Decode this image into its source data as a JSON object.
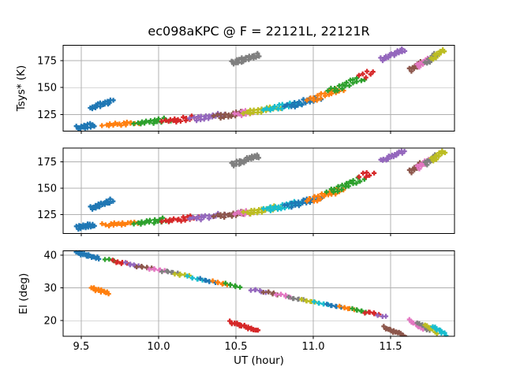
{
  "chart_data": {
    "type": "scatter",
    "title": "ec098aKPC @ F = 22121L, 22121R",
    "xlabel": "UT (hour)",
    "marker": "plus",
    "xlim": [
      9.383,
      11.913
    ],
    "xticks": [
      9.5,
      10.0,
      10.5,
      11.0,
      11.5
    ],
    "xticklabels": [
      "9.5",
      "10.0",
      "10.5",
      "11.0",
      "11.5"
    ],
    "grid": true,
    "grid_color": "#b0b0b0",
    "spine_color": "#000000",
    "background": "#ffffff",
    "palette": {
      "blue": "#1f77b4",
      "orange": "#ff7f0e",
      "green": "#2ca02c",
      "red": "#d62728",
      "purple": "#9467bd",
      "brown": "#8c564b",
      "pink": "#e377c2",
      "gray": "#7f7f7f",
      "olive": "#bcbd22",
      "cyan": "#17becf"
    },
    "panels": [
      {
        "id": "tsys-22121L",
        "ylabel": "Tsys* (K)",
        "ylim": [
          110,
          189
        ],
        "yticks": [
          125,
          150,
          175
        ],
        "yticklabels": [
          "125",
          "150",
          "175"
        ],
        "clusters_ref": "tsys_clusters"
      },
      {
        "id": "tsys-22121R",
        "ylabel": "",
        "ylim": [
          107,
          188
        ],
        "yticks": [
          125,
          150,
          175
        ],
        "yticklabels": [
          "125",
          "150",
          "175"
        ],
        "clusters_ref": "tsys_clusters"
      },
      {
        "id": "elevation",
        "ylabel": "El (deg)",
        "ylim": [
          15.2,
          41.4
        ],
        "yticks": [
          20,
          30,
          40
        ],
        "yticklabels": [
          "20",
          "30",
          "40"
        ],
        "clusters_ref": "el_clusters"
      }
    ],
    "tsys_clusters": [
      {
        "c": "blue",
        "x0": 9.47,
        "x1": 9.575,
        "y0": 113.5,
        "y1": 116.5,
        "s": "blob"
      },
      {
        "c": "blue",
        "x0": 9.56,
        "x1": 9.69,
        "y0": 132.0,
        "y1": 139.0,
        "s": "blob"
      },
      {
        "c": "orange",
        "x0": 9.635,
        "x1": 9.825,
        "y0": 115.5,
        "y1": 118.5,
        "s": "band"
      },
      {
        "c": "green",
        "x0": 9.84,
        "x1": 10.03,
        "y0": 117.0,
        "y1": 121.0,
        "s": "band"
      },
      {
        "c": "red",
        "x0": 10.02,
        "x1": 10.21,
        "y0": 119.0,
        "y1": 123.0,
        "s": "band"
      },
      {
        "c": "purple",
        "x0": 10.2,
        "x1": 10.38,
        "y0": 121.5,
        "y1": 125.5,
        "s": "band"
      },
      {
        "c": "brown",
        "x0": 10.355,
        "x1": 10.53,
        "y0": 123.5,
        "y1": 127.5,
        "s": "band"
      },
      {
        "c": "pink",
        "x0": 10.49,
        "x1": 10.565,
        "y0": 125.5,
        "y1": 128.5,
        "s": "band"
      },
      {
        "c": "gray",
        "x0": 10.47,
        "x1": 10.635,
        "y0": 173.5,
        "y1": 181.0,
        "s": "blob"
      },
      {
        "c": "olive",
        "x0": 10.545,
        "x1": 10.745,
        "y0": 127.0,
        "y1": 132.5,
        "s": "band"
      },
      {
        "c": "cyan",
        "x0": 10.675,
        "x1": 10.875,
        "y0": 130.0,
        "y1": 136.5,
        "s": "band"
      },
      {
        "c": "blue",
        "x0": 10.81,
        "x1": 11.005,
        "y0": 133.0,
        "y1": 141.0,
        "s": "band"
      },
      {
        "c": "orange",
        "x0": 10.955,
        "x1": 11.15,
        "y0": 138.5,
        "y1": 149.0,
        "s": "band"
      },
      {
        "c": "green",
        "x0": 11.09,
        "x1": 11.285,
        "y0": 147.0,
        "y1": 159.0,
        "s": "band"
      },
      {
        "c": "red",
        "x0": 11.3,
        "x1": 11.345,
        "y0": 161.0,
        "y1": 165.5,
        "s": "band"
      },
      {
        "c": "purple",
        "x0": 11.44,
        "x1": 11.575,
        "y0": 177.0,
        "y1": 186.0,
        "s": "blob"
      },
      {
        "c": "brown",
        "x0": 11.625,
        "x1": 11.69,
        "y0": 167.0,
        "y1": 173.5,
        "s": "blob"
      },
      {
        "c": "pink",
        "x0": 11.675,
        "x1": 11.74,
        "y0": 170.5,
        "y1": 177.5,
        "s": "blob"
      },
      {
        "c": "gray",
        "x0": 11.725,
        "x1": 11.785,
        "y0": 174.0,
        "y1": 181.0,
        "s": "blob"
      },
      {
        "c": "olive",
        "x0": 11.765,
        "x1": 11.835,
        "y0": 177.5,
        "y1": 185.5,
        "s": "blob"
      }
    ],
    "el_clusters": [
      {
        "c": "blue",
        "x0": 9.468,
        "x1": 9.6,
        "y0": 41.0,
        "y1": 39.5,
        "s": "blob"
      },
      {
        "c": "orange",
        "x0": 9.565,
        "x1": 9.665,
        "y0": 30.0,
        "y1": 28.9,
        "s": "blob"
      },
      {
        "c": "red",
        "x0": 10.46,
        "x1": 10.63,
        "y0": 19.8,
        "y1": 17.4,
        "s": "blob"
      },
      {
        "c": "brown",
        "x0": 11.455,
        "x1": 11.585,
        "y0": 18.1,
        "y1": 15.5,
        "s": "blob"
      },
      {
        "c": "pink",
        "x0": 11.62,
        "x1": 11.695,
        "y0": 20.1,
        "y1": 18.0,
        "s": "blob"
      },
      {
        "c": "gray",
        "x0": 11.67,
        "x1": 11.74,
        "y0": 19.6,
        "y1": 17.4,
        "s": "blob"
      },
      {
        "c": "olive",
        "x0": 11.72,
        "x1": 11.79,
        "y0": 18.9,
        "y1": 16.7,
        "s": "blob"
      },
      {
        "c": "cyan",
        "x0": 11.77,
        "x1": 11.85,
        "y0": 18.3,
        "y1": 16.1,
        "s": "blob"
      },
      {
        "c": "green",
        "x0": 9.65,
        "x1": 9.712,
        "y0": 38.8,
        "y1": 38.2,
        "s": "line"
      },
      {
        "c": "red",
        "x0": 9.732,
        "x1": 9.794,
        "y0": 38.0,
        "y1": 37.4,
        "s": "line"
      },
      {
        "c": "purple",
        "x0": 9.813,
        "x1": 9.875,
        "y0": 37.2,
        "y1": 36.6,
        "s": "line"
      },
      {
        "c": "brown",
        "x0": 9.895,
        "x1": 9.957,
        "y0": 36.5,
        "y1": 35.9,
        "s": "line"
      },
      {
        "c": "pink",
        "x0": 9.976,
        "x1": 10.038,
        "y0": 35.7,
        "y1": 35.1,
        "s": "line"
      },
      {
        "c": "gray",
        "x0": 10.058,
        "x1": 10.12,
        "y0": 34.9,
        "y1": 34.3,
        "s": "line"
      },
      {
        "c": "olive",
        "x0": 10.139,
        "x1": 10.201,
        "y0": 34.1,
        "y1": 33.5,
        "s": "line"
      },
      {
        "c": "cyan",
        "x0": 10.221,
        "x1": 10.283,
        "y0": 33.3,
        "y1": 32.7,
        "s": "line"
      },
      {
        "c": "blue",
        "x0": 10.302,
        "x1": 10.364,
        "y0": 32.5,
        "y1": 31.9,
        "s": "line"
      },
      {
        "c": "orange",
        "x0": 10.384,
        "x1": 10.446,
        "y0": 31.8,
        "y1": 31.2,
        "s": "line"
      },
      {
        "c": "green",
        "x0": 10.465,
        "x1": 10.527,
        "y0": 31.0,
        "y1": 30.4,
        "s": "line"
      },
      {
        "c": "purple",
        "x0": 10.628,
        "x1": 10.69,
        "y0": 29.4,
        "y1": 28.8,
        "s": "line"
      },
      {
        "c": "brown",
        "x0": 10.71,
        "x1": 10.772,
        "y0": 28.6,
        "y1": 28.0,
        "s": "line"
      },
      {
        "c": "pink",
        "x0": 10.791,
        "x1": 10.853,
        "y0": 27.8,
        "y1": 27.2,
        "s": "line"
      },
      {
        "c": "gray",
        "x0": 10.873,
        "x1": 10.935,
        "y0": 27.1,
        "y1": 26.5,
        "s": "line"
      },
      {
        "c": "olive",
        "x0": 10.954,
        "x1": 11.016,
        "y0": 26.3,
        "y1": 25.7,
        "s": "line"
      },
      {
        "c": "cyan",
        "x0": 11.036,
        "x1": 11.098,
        "y0": 25.5,
        "y1": 24.9,
        "s": "line"
      },
      {
        "c": "blue",
        "x0": 11.117,
        "x1": 11.179,
        "y0": 24.7,
        "y1": 24.1,
        "s": "line"
      },
      {
        "c": "orange",
        "x0": 11.199,
        "x1": 11.261,
        "y0": 23.9,
        "y1": 23.3,
        "s": "line"
      },
      {
        "c": "green",
        "x0": 11.28,
        "x1": 11.342,
        "y0": 23.1,
        "y1": 22.5,
        "s": "line"
      },
      {
        "c": "red",
        "x0": 11.362,
        "x1": 11.424,
        "y0": 22.4,
        "y1": 21.8,
        "s": "line"
      },
      {
        "c": "red",
        "x0": 9.7,
        "x1": 9.762,
        "y0": 38.3,
        "y1": 37.7,
        "s": "line"
      },
      {
        "c": "purple",
        "x0": 9.782,
        "x1": 9.844,
        "y0": 37.5,
        "y1": 36.9,
        "s": "line"
      },
      {
        "c": "brown",
        "x0": 9.863,
        "x1": 9.925,
        "y0": 36.7,
        "y1": 36.1,
        "s": "line"
      },
      {
        "c": "pink",
        "x0": 9.945,
        "x1": 10.007,
        "y0": 35.9,
        "y1": 35.3,
        "s": "line"
      },
      {
        "c": "gray",
        "x0": 10.026,
        "x1": 10.088,
        "y0": 35.1,
        "y1": 34.5,
        "s": "line"
      },
      {
        "c": "olive",
        "x0": 10.108,
        "x1": 10.17,
        "y0": 34.3,
        "y1": 33.7,
        "s": "line"
      },
      {
        "c": "cyan",
        "x0": 10.189,
        "x1": 10.251,
        "y0": 33.6,
        "y1": 33.0,
        "s": "line"
      },
      {
        "c": "blue",
        "x0": 10.271,
        "x1": 10.333,
        "y0": 32.8,
        "y1": 32.2,
        "s": "line"
      },
      {
        "c": "orange",
        "x0": 10.352,
        "x1": 10.414,
        "y0": 32.0,
        "y1": 31.4,
        "s": "line"
      },
      {
        "c": "green",
        "x0": 10.434,
        "x1": 10.496,
        "y0": 31.2,
        "y1": 30.6,
        "s": "line"
      },
      {
        "c": "purple",
        "x0": 10.597,
        "x1": 10.659,
        "y0": 29.6,
        "y1": 29.0,
        "s": "line"
      },
      {
        "c": "brown",
        "x0": 10.678,
        "x1": 10.74,
        "y0": 28.9,
        "y1": 28.3,
        "s": "line"
      },
      {
        "c": "pink",
        "x0": 10.76,
        "x1": 10.822,
        "y0": 28.1,
        "y1": 27.5,
        "s": "line"
      },
      {
        "c": "gray",
        "x0": 10.841,
        "x1": 10.903,
        "y0": 27.3,
        "y1": 26.7,
        "s": "line"
      },
      {
        "c": "olive",
        "x0": 10.923,
        "x1": 10.985,
        "y0": 26.5,
        "y1": 25.9,
        "s": "line"
      },
      {
        "c": "cyan",
        "x0": 11.004,
        "x1": 11.066,
        "y0": 25.7,
        "y1": 25.1,
        "s": "line"
      },
      {
        "c": "blue",
        "x0": 11.086,
        "x1": 11.148,
        "y0": 24.9,
        "y1": 24.3,
        "s": "line"
      },
      {
        "c": "orange",
        "x0": 11.167,
        "x1": 11.229,
        "y0": 24.2,
        "y1": 23.6,
        "s": "line"
      },
      {
        "c": "green",
        "x0": 11.249,
        "x1": 11.311,
        "y0": 23.4,
        "y1": 22.8,
        "s": "line"
      },
      {
        "c": "red",
        "x0": 11.33,
        "x1": 11.392,
        "y0": 22.6,
        "y1": 22.0,
        "s": "line"
      },
      {
        "c": "purple",
        "x0": 11.412,
        "x1": 11.474,
        "y0": 21.8,
        "y1": 21.2,
        "s": "line"
      }
    ]
  }
}
